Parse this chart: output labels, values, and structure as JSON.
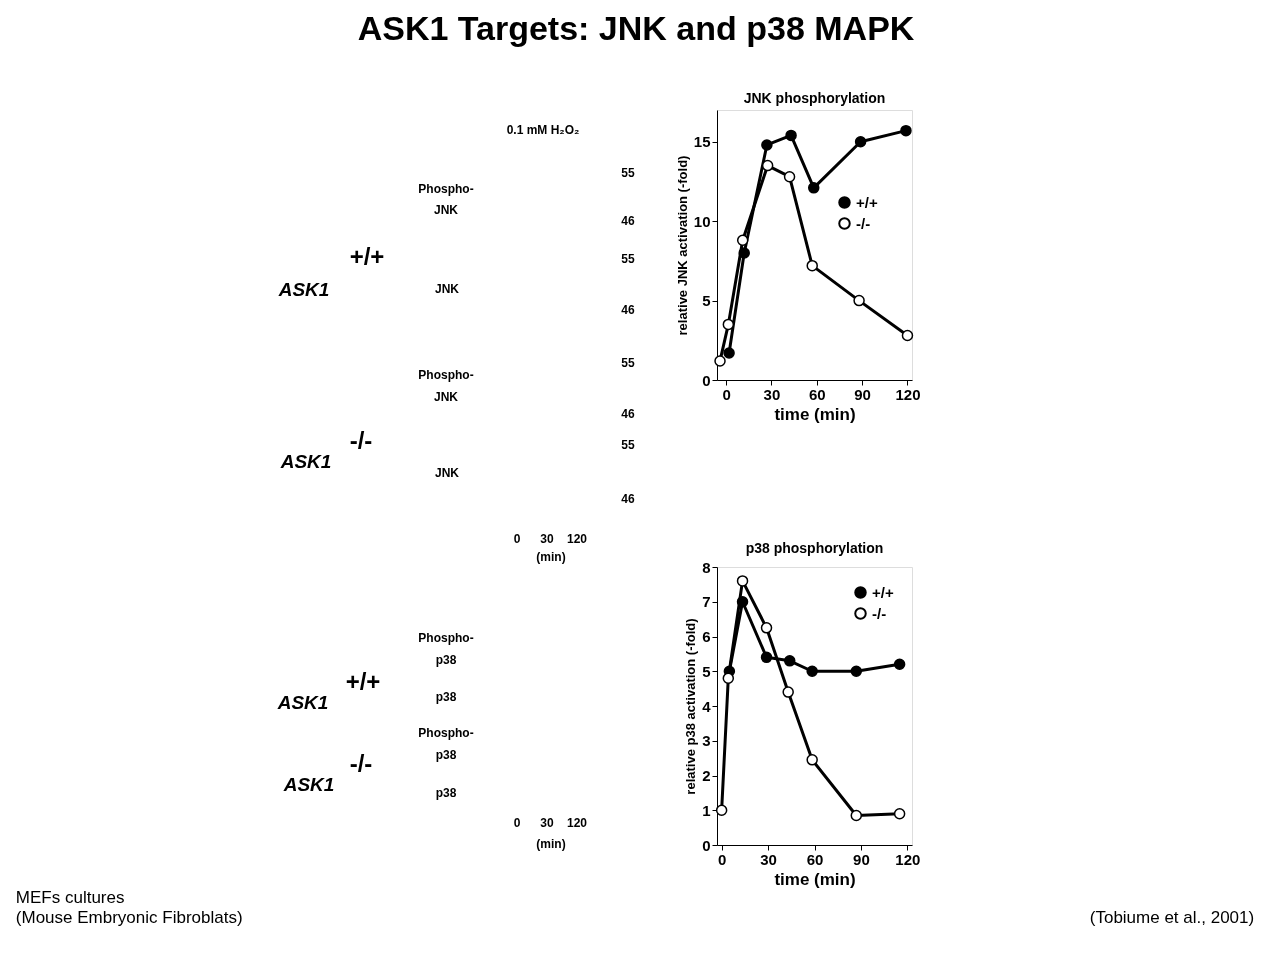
{
  "chart_data": [
    {
      "type": "other",
      "title": "ASK1 Targets: JNK and  p38 MAPK",
      "annotations": [
        "MEFs cultures",
        "(Mouse Embryonic Fibroblats)",
        "(Tobiume et al., 2001)"
      ]
    },
    {
      "type": "other",
      "annotations": [
        "0.1 mM H₂O₂",
        "ASK1",
        "+/+",
        "Phospho-",
        "JNK",
        "55",
        "46",
        "JNK",
        "55",
        "46",
        "ASK1",
        "-/-",
        "Phospho-",
        "JNK",
        "55",
        "46",
        "JNK",
        "55",
        "46",
        "0",
        "30",
        "120",
        "(min)"
      ]
    },
    {
      "type": "line",
      "title": "JNK phosphorylation",
      "xlabel": "time (min)",
      "ylabel": "relative JNK activation (-fold)",
      "xlim": [
        -6,
        123
      ],
      "ylim": [
        0,
        17
      ],
      "xticks": [
        0,
        30,
        60,
        90,
        120
      ],
      "yticks": [
        0,
        5,
        10,
        15
      ],
      "grid": false,
      "legend": "right",
      "marker": "circle",
      "line_style": "solid",
      "series": [
        {
          "name": "+/+",
          "color": "#000000",
          "x": [
            2,
            12,
            27,
            43,
            58,
            89,
            119
          ],
          "values": [
            1.7,
            8.0,
            14.8,
            15.4,
            12.1,
            15.0,
            15.7
          ]
        },
        {
          "name": "-/-",
          "color": "#ffffff",
          "x": [
            -4,
            1.5,
            11,
            27.5,
            42,
            57,
            88,
            120
          ],
          "values": [
            1.2,
            3.5,
            8.8,
            13.5,
            12.8,
            7.2,
            5.0,
            2.8
          ]
        }
      ]
    },
    {
      "type": "other",
      "annotations": [
        "ASK1",
        "+/+",
        "Phospho-",
        "p38",
        "p38",
        "ASK1",
        "-/-",
        "Phospho-",
        "p38",
        "p38",
        "0",
        "30",
        "120",
        "(min)"
      ]
    },
    {
      "type": "line",
      "title": "p38 phosphorylation",
      "xlabel": "time (min)",
      "ylabel": "relative p38 activation (-fold)",
      "xlim": [
        -3,
        123
      ],
      "ylim": [
        0,
        8
      ],
      "xticks": [
        0,
        30,
        60,
        90,
        120
      ],
      "yticks": [
        0,
        1,
        2,
        3,
        4,
        5,
        6,
        7,
        8
      ],
      "grid": false,
      "legend": "top right",
      "marker": "circle",
      "line_style": "solid",
      "series": [
        {
          "name": "+/+",
          "color": "#000000",
          "x": [
            5,
            13.5,
            29,
            44,
            58.5,
            87,
            115
          ],
          "values": [
            5.0,
            7.0,
            5.4,
            5.3,
            5.0,
            5.0,
            5.2
          ]
        },
        {
          "name": "-/-",
          "color": "#ffffff",
          "x": [
            0,
            4.3,
            13.5,
            29,
            43,
            58.5,
            87,
            115
          ],
          "values": [
            1.0,
            4.8,
            7.6,
            6.25,
            4.4,
            2.45,
            0.85,
            0.9
          ]
        }
      ]
    }
  ]
}
